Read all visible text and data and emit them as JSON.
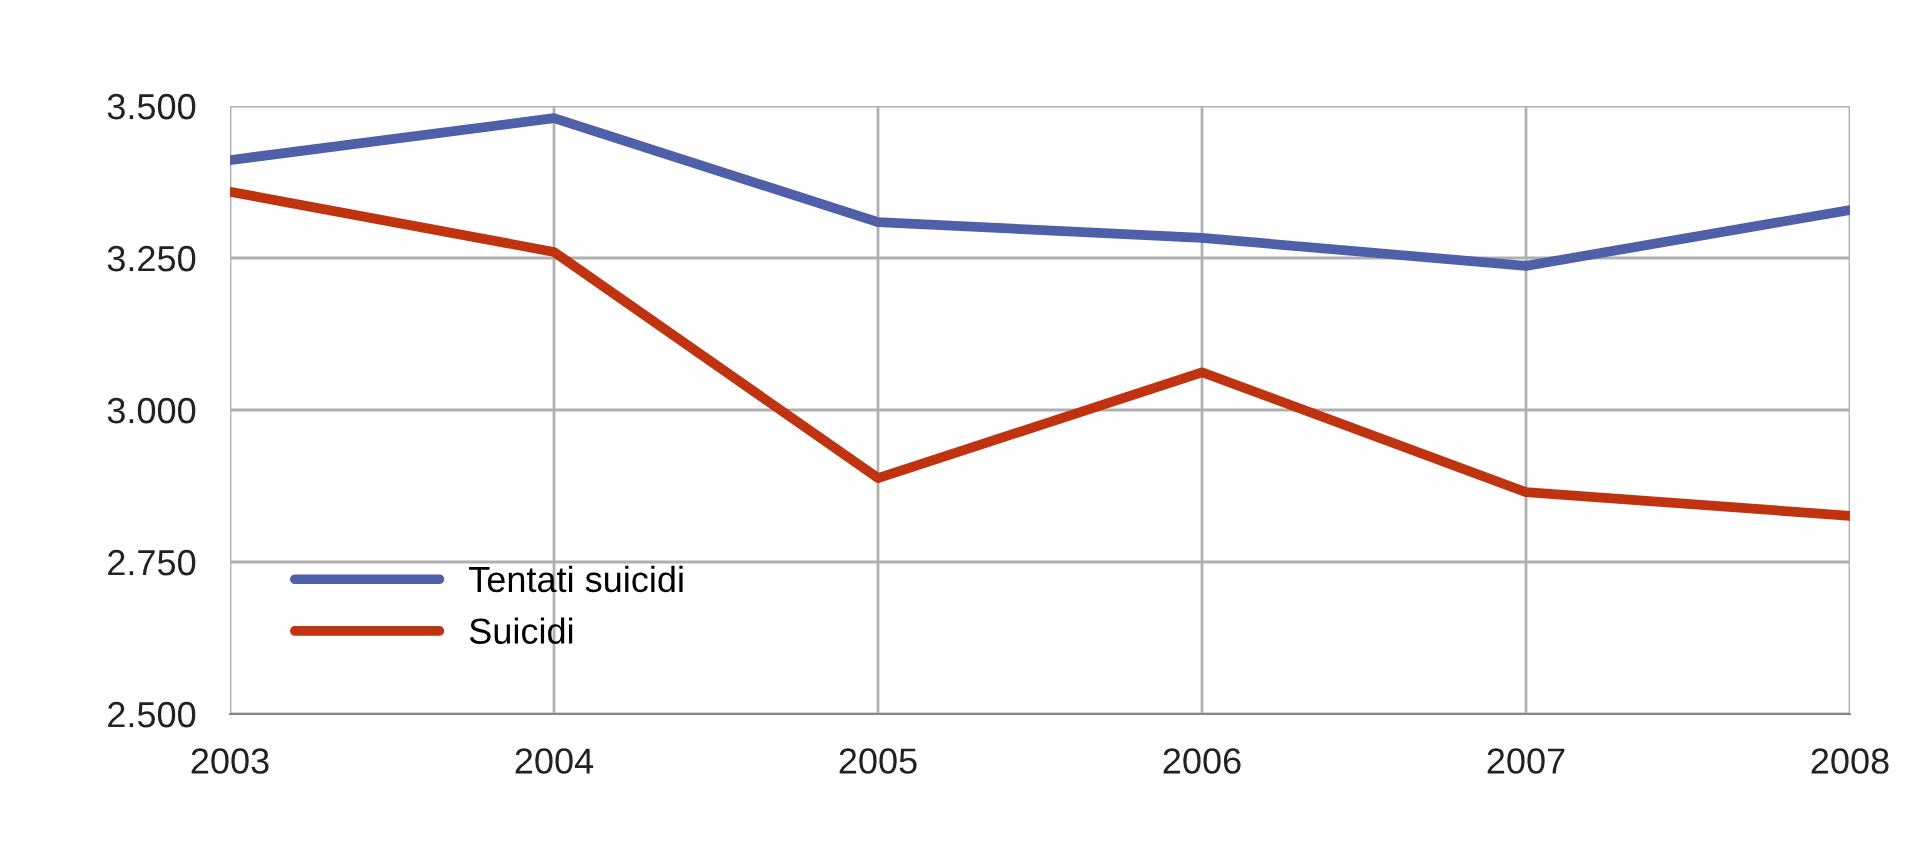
{
  "chart_data": {
    "type": "line",
    "x": [
      2003,
      2004,
      2005,
      2006,
      2007,
      2008
    ],
    "xlim": [
      2003,
      2008
    ],
    "xticks": [
      2003,
      2004,
      2005,
      2006,
      2007,
      2008
    ],
    "ylim": [
      2500,
      3500
    ],
    "yticks": [
      {
        "value": 2500,
        "label": "2.500"
      },
      {
        "value": 2750,
        "label": "2.750"
      },
      {
        "value": 3000,
        "label": "3.000"
      },
      {
        "value": 3250,
        "label": "3.250"
      },
      {
        "value": 3500,
        "label": "3.500"
      }
    ],
    "series": [
      {
        "name": "Tentati suicidi",
        "color": "#4f5fa8",
        "values": [
          3411,
          3480,
          3309,
          3283,
          3237,
          3329
        ]
      },
      {
        "name": "Suicidi",
        "color": "#bf3311",
        "values": [
          3359,
          3260,
          2888,
          3062,
          2865,
          2826
        ]
      }
    ],
    "grid": true,
    "legend": "bottom left",
    "marker": "none",
    "line_style": "solid"
  }
}
